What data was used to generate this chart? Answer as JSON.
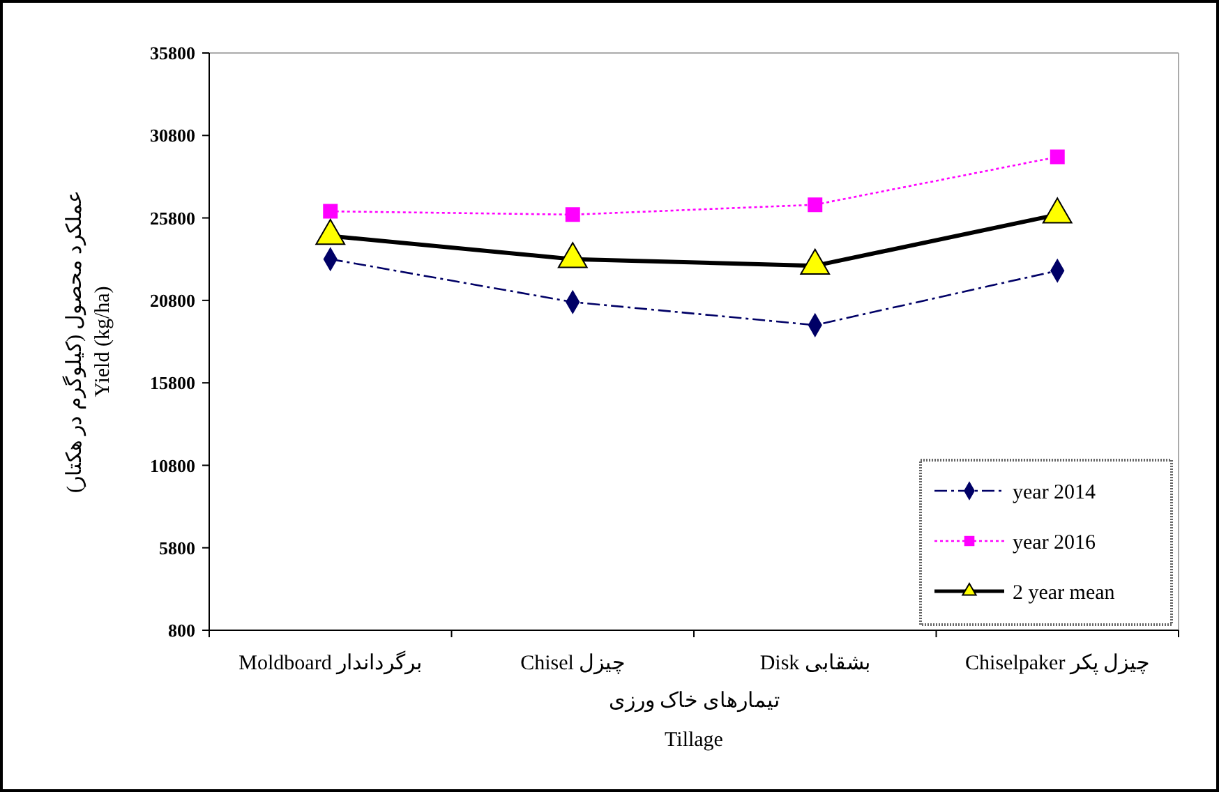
{
  "chart_data": {
    "type": "line",
    "xlabel": "تیمارهای خاک ورزی\nTillage",
    "ylabel": "عملکرد محصول (کیلوگرم در هکتار)\nYield (kg/ha)",
    "categories": [
      "Moldboard برگرداندار",
      "Chisel چیزل",
      "Disk بشقابی",
      "Chiselpaker  چیزل پکر"
    ],
    "ylim": [
      800,
      35800
    ],
    "yticks": [
      800,
      5800,
      10800,
      15800,
      20800,
      25800,
      30800,
      35800
    ],
    "grid": false,
    "legend": "bottom right",
    "series": [
      {
        "name": "year 2014",
        "color": "#000066",
        "values": [
          23300,
          20700,
          19300,
          22600
        ],
        "marker": "diamond",
        "line_style": "dashed"
      },
      {
        "name": "year 2016",
        "color": "#ff00ff",
        "values": [
          26200,
          26000,
          26600,
          29500
        ],
        "marker": "square",
        "line_style": "dotted"
      },
      {
        "name": "2 year mean",
        "color": "#000000",
        "values": [
          24700,
          23300,
          22900,
          26000
        ],
        "marker": "triangle",
        "line_style": "solid"
      }
    ]
  }
}
